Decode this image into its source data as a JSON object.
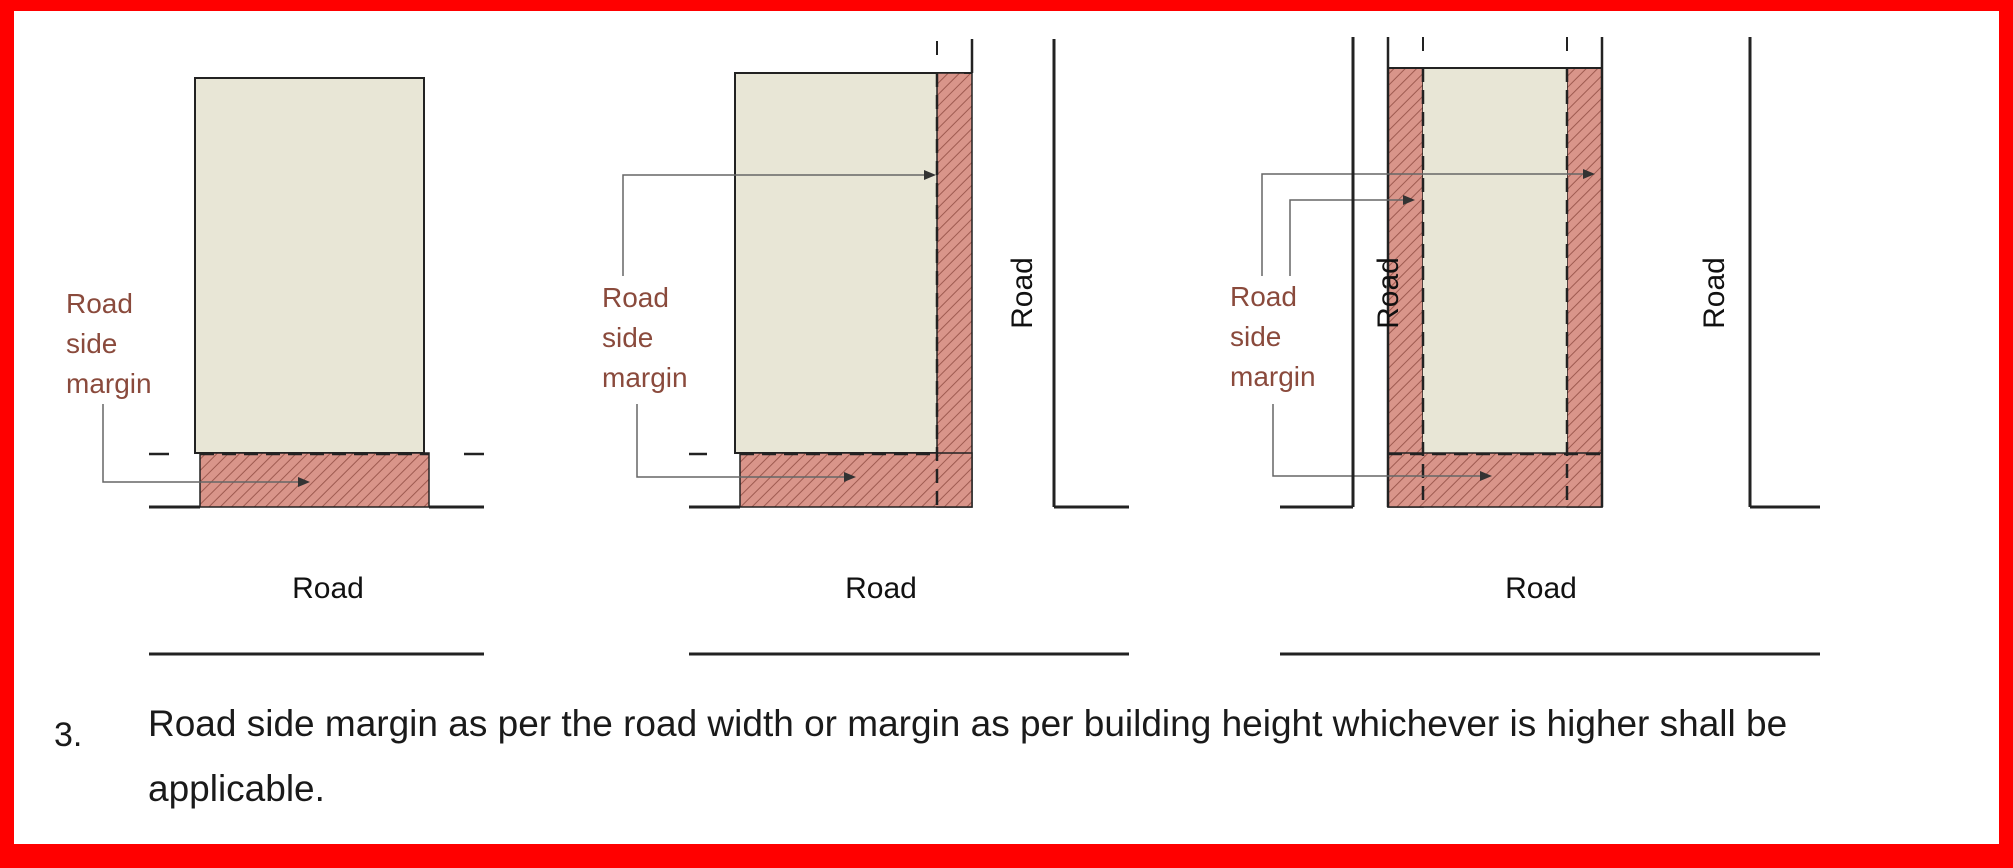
{
  "colors": {
    "frame": "#ff0000",
    "margin_fill": "#d9958a",
    "plot_fill": "#e8e6d6",
    "margin_text": "#8a4a3c",
    "line": "#111111"
  },
  "diagrams": [
    {
      "road_side_margin_label": [
        "Road",
        "side",
        "margin"
      ],
      "bottom_road": "Road"
    },
    {
      "road_side_margin_label": [
        "Road",
        "side",
        "margin"
      ],
      "bottom_road": "Road",
      "right_road": "Road"
    },
    {
      "road_side_margin_label": [
        "Road",
        "side",
        "margin"
      ],
      "bottom_road": "Road",
      "left_road": "Road",
      "right_road": "Road"
    }
  ],
  "note": {
    "number": "3.",
    "text": "Road side margin as per the road width or margin as per building height whichever is higher shall be applicable."
  }
}
